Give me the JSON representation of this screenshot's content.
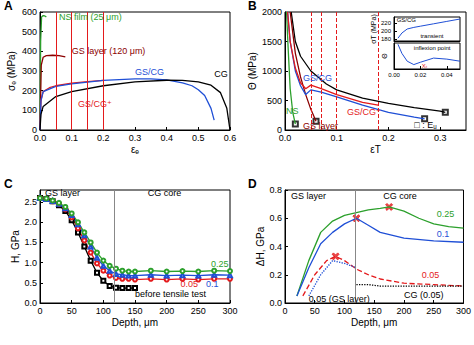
{
  "chart_data": [
    {
      "type": "line",
      "title": "A",
      "x_label": "εₑ",
      "y_label": "σₑ (MPa)",
      "xlim": [
        0,
        0.6
      ],
      "xticks": [
        {
          "value": 0,
          "label": "0.0"
        },
        0.1,
        0.2,
        0.3,
        0.4,
        0.5,
        0.6
      ],
      "ylim": [
        0,
        600
      ],
      "yticks": [
        0,
        100,
        200,
        300,
        400,
        500,
        600
      ],
      "grid": false,
      "series": [
        {
          "color": "#2ca02c",
          "line_style": "solid",
          "x": [
            0,
            0.002,
            0.005,
            0.01,
            0.015,
            0.02
          ],
          "values": [
            0,
            450,
            575,
            582,
            580,
            575
          ]
        },
        {
          "color": "#8b0000",
          "line_style": "solid",
          "x": [
            0,
            0.004,
            0.01,
            0.02,
            0.04,
            0.06,
            0.08
          ],
          "values": [
            0,
            330,
            370,
            378,
            380,
            378,
            372
          ]
        },
        {
          "color": "#e41a1c",
          "line_style": "solid",
          "x": [
            0,
            0.003,
            0.01,
            0.03,
            0.05,
            0.1,
            0.15,
            0.2
          ],
          "values": [
            0,
            150,
            195,
            215,
            225,
            238,
            246,
            252
          ]
        },
        {
          "color": "#1f4fd6",
          "line_style": "solid",
          "x": [
            0,
            0.003,
            0.01,
            0.05,
            0.1,
            0.2,
            0.3,
            0.35,
            0.4,
            0.45,
            0.48,
            0.5,
            0.52,
            0.54,
            0.55
          ],
          "values": [
            0,
            150,
            195,
            222,
            235,
            252,
            260,
            260,
            255,
            240,
            225,
            205,
            175,
            110,
            50
          ]
        },
        {
          "color": "#000000",
          "line_style": "solid",
          "x": [
            0,
            0.003,
            0.01,
            0.05,
            0.1,
            0.2,
            0.3,
            0.4,
            0.45,
            0.5,
            0.54,
            0.57,
            0.59,
            0.6
          ],
          "values": [
            0,
            80,
            120,
            170,
            195,
            225,
            245,
            253,
            252,
            245,
            228,
            190,
            110,
            0
          ]
        }
      ],
      "vlines": {
        "x": [
          0.05,
          0.1,
          0.15,
          0.2
        ],
        "color": "#e41a1c",
        "line_style": "solid"
      },
      "annotations": [
        {
          "text": "NS film (25 μm)",
          "x": 0.06,
          "y": 575,
          "color": "#2ca02c"
        },
        {
          "text": "GS layer (120 μm)",
          "x": 0.1,
          "y": 400,
          "color": "#8b0000"
        },
        {
          "text": "GS/CG",
          "x": 0.3,
          "y": 295,
          "color": "#1f4fd6"
        },
        {
          "text": "CG",
          "x": 0.55,
          "y": 285,
          "color": "#000000"
        },
        {
          "text": "GS/CG⁺",
          "x": 0.12,
          "y": 130,
          "color": "#e41a1c"
        }
      ]
    },
    {
      "type": "line",
      "title": "B",
      "x_label": "εT",
      "y_label": "Θ (MPa)",
      "xlim": [
        0,
        0.35
      ],
      "xticks": [
        {
          "value": 0,
          "label": "0.0"
        },
        0.1,
        0.2,
        0.3
      ],
      "ylim": [
        0,
        2000
      ],
      "yticks": [
        0,
        500,
        1000,
        1500,
        2000
      ],
      "grid": false,
      "series": [
        {
          "color": "#000000",
          "line_style": "solid",
          "x": [
            0.012,
            0.02,
            0.03,
            0.05,
            0.08,
            0.1,
            0.15,
            0.2,
            0.25,
            0.3,
            0.31
          ],
          "values": [
            2000,
            1500,
            1250,
            1000,
            780,
            680,
            540,
            450,
            380,
            320,
            300
          ]
        },
        {
          "color": "#2ca02c",
          "line_style": "solid",
          "x": [
            0.003,
            0.006,
            0.01,
            0.015,
            0.02
          ],
          "values": [
            2000,
            1400,
            700,
            300,
            100
          ]
        },
        {
          "color": "#8b0000",
          "line_style": "solid",
          "x": [
            0.01,
            0.02,
            0.03,
            0.04,
            0.05,
            0.06
          ],
          "values": [
            2000,
            1300,
            900,
            600,
            350,
            150
          ]
        },
        {
          "color": "#1f4fd6",
          "line_style": "solid",
          "x": [
            0.005,
            0.01,
            0.02,
            0.03,
            0.04,
            0.05,
            0.07,
            0.1,
            0.15,
            0.2,
            0.25,
            0.27
          ],
          "values": [
            2000,
            1500,
            1000,
            750,
            600,
            680,
            640,
            560,
            420,
            300,
            220,
            190
          ]
        },
        {
          "color": "#e41a1c",
          "line_style": "solid",
          "x": [
            0.005,
            0.01,
            0.02,
            0.03,
            0.04,
            0.05,
            0.07,
            0.1,
            0.15,
            0.18
          ],
          "values": [
            2000,
            1500,
            1050,
            800,
            700,
            760,
            700,
            600,
            470,
            420
          ]
        },
        {
          "type": "scatter",
          "color": "#000000",
          "marker": "square",
          "x": [
            0.02,
            0.06,
            0.27,
            0.31
          ],
          "values": [
            100,
            150,
            190,
            300
          ]
        }
      ],
      "vlines": {
        "x": [
          0.05,
          0.07,
          0.1,
          0.18
        ],
        "color": "#e41a1c",
        "line_style": "dashed"
      },
      "annotations": [
        {
          "text": "NS",
          "x": 0.002,
          "y": 330,
          "color": "#2ca02c"
        },
        {
          "text": "GS layer",
          "x": 0.035,
          "y": 70,
          "color": "#8b0000"
        },
        {
          "text": "GS/CG",
          "x": 0.035,
          "y": 880,
          "color": "#1f4fd6"
        },
        {
          "text": "GS/CG⁺",
          "x": 0.12,
          "y": 300,
          "color": "#e41a1c"
        },
        {
          "text": "□ : Eᵤ",
          "x": 0.25,
          "y": 80,
          "color": "#000000"
        }
      ]
    },
    {
      "type": "line",
      "title": "C",
      "x_label": "Depth, μm",
      "y_label": "H, GPa",
      "xlim": [
        0,
        300
      ],
      "xticks": [
        0,
        50,
        100,
        150,
        200,
        250,
        300
      ],
      "ylim": [
        0,
        2.8
      ],
      "yticks": [
        {
          "value": 0,
          "label": "0.0"
        },
        0.5,
        {
          "value": 1,
          "label": "1.0"
        },
        1.5,
        {
          "value": 2,
          "label": "2.0"
        },
        2.5
      ],
      "grid": false,
      "series": [
        {
          "color": "#000000",
          "marker": "square",
          "line_style": "solid",
          "x": [
            0,
            10,
            20,
            30,
            40,
            50,
            60,
            70,
            80,
            90,
            100,
            110,
            120,
            130,
            140,
            150
          ],
          "values": [
            2.6,
            2.58,
            2.52,
            2.42,
            2.28,
            2.05,
            1.75,
            1.4,
            1.05,
            0.75,
            0.55,
            0.42,
            0.38,
            0.37,
            0.37,
            0.37
          ]
        },
        {
          "color": "#e41a1c",
          "marker": "circle",
          "line_style": "solid",
          "x": [
            0,
            10,
            20,
            30,
            40,
            50,
            60,
            70,
            80,
            90,
            100,
            110,
            120,
            130,
            140,
            150,
            175,
            200,
            225,
            250,
            275,
            300
          ],
          "values": [
            2.6,
            2.58,
            2.52,
            2.45,
            2.32,
            2.12,
            1.85,
            1.55,
            1.25,
            0.98,
            0.8,
            0.68,
            0.62,
            0.6,
            0.6,
            0.58,
            0.6,
            0.58,
            0.6,
            0.58,
            0.6,
            0.6
          ]
        },
        {
          "color": "#1f4fd6",
          "marker": "triangle",
          "line_style": "solid",
          "x": [
            0,
            10,
            20,
            30,
            40,
            50,
            60,
            70,
            80,
            90,
            100,
            110,
            120,
            130,
            140,
            150,
            175,
            200,
            225,
            250,
            275,
            300
          ],
          "values": [
            2.6,
            2.58,
            2.53,
            2.46,
            2.35,
            2.18,
            1.95,
            1.68,
            1.4,
            1.12,
            0.92,
            0.8,
            0.72,
            0.7,
            0.68,
            0.68,
            0.7,
            0.68,
            0.69,
            0.68,
            0.7,
            0.69
          ]
        },
        {
          "color": "#2ca02c",
          "marker": "circle",
          "line_style": "solid",
          "x": [
            0,
            10,
            20,
            30,
            40,
            50,
            60,
            70,
            80,
            90,
            100,
            110,
            120,
            130,
            140,
            150,
            175,
            200,
            225,
            250,
            275,
            300
          ],
          "values": [
            2.6,
            2.59,
            2.54,
            2.48,
            2.38,
            2.22,
            2.0,
            1.75,
            1.5,
            1.25,
            1.05,
            0.92,
            0.85,
            0.8,
            0.78,
            0.78,
            0.8,
            0.78,
            0.79,
            0.78,
            0.8,
            0.79
          ]
        }
      ],
      "vlines": {
        "x": [
          118
        ],
        "color": "#888888",
        "line_style": "solid"
      },
      "annotations": [
        {
          "text": "GS layer",
          "x": 8,
          "y": 2.72,
          "color": "#000000"
        },
        {
          "text": "CG core",
          "x": 170,
          "y": 2.72,
          "color": "#000000"
        },
        {
          "text": "0.25",
          "x": 270,
          "y": 0.97,
          "color": "#2ca02c"
        },
        {
          "text": "0.1",
          "x": 262,
          "y": 0.47,
          "color": "#1f4fd6"
        },
        {
          "text": "0.05",
          "x": 222,
          "y": 0.47,
          "color": "#e41a1c"
        },
        {
          "text": "before tensile test",
          "x": 150,
          "y": 0.22,
          "color": "#000000"
        }
      ]
    },
    {
      "type": "line",
      "title": "D",
      "x_label": "Depth, μm",
      "y_label": "ΔH, GPa",
      "xlim": [
        0,
        300
      ],
      "xticks": [
        0,
        50,
        100,
        150,
        200,
        250,
        300
      ],
      "ylim": [
        0,
        0.8
      ],
      "yticks": [
        {
          "value": 0,
          "label": "0.0"
        },
        0.2,
        0.4,
        0.6,
        0.8
      ],
      "grid": false,
      "series": [
        {
          "color": "#2ca02c",
          "line_style": "solid",
          "x": [
            20,
            40,
            60,
            80,
            100,
            120,
            140,
            160,
            175,
            200,
            225,
            250,
            275,
            300
          ],
          "values": [
            0.05,
            0.3,
            0.5,
            0.58,
            0.62,
            0.64,
            0.66,
            0.67,
            0.68,
            0.65,
            0.6,
            0.56,
            0.54,
            0.53
          ]
        },
        {
          "color": "#1f4fd6",
          "line_style": "solid",
          "x": [
            20,
            40,
            60,
            80,
            100,
            120,
            140,
            160,
            200,
            250,
            300
          ],
          "values": [
            0.05,
            0.25,
            0.42,
            0.5,
            0.56,
            0.6,
            0.55,
            0.5,
            0.46,
            0.44,
            0.43
          ]
        },
        {
          "color": "#e41a1c",
          "line_style": "dashed",
          "x": [
            30,
            50,
            70,
            85,
            100,
            120,
            140,
            160,
            200,
            250,
            300
          ],
          "values": [
            0.05,
            0.2,
            0.3,
            0.33,
            0.3,
            0.24,
            0.2,
            0.17,
            0.14,
            0.13,
            0.12
          ]
        },
        {
          "color": "#000000",
          "line_style": "dotted",
          "x": [
            120,
            140,
            160,
            200,
            250,
            300
          ],
          "values": [
            0.13,
            0.13,
            0.12,
            0.12,
            0.12,
            0.12
          ]
        },
        {
          "color": "#1f4fd6",
          "line_style": "dotted",
          "x": [
            40,
            60,
            80,
            100,
            120
          ],
          "values": [
            0.05,
            0.2,
            0.3,
            0.28,
            0.25
          ]
        },
        {
          "type": "scatter",
          "color": "#e41a1c",
          "marker": "cross",
          "x": [
            175,
            120,
            85
          ],
          "values": [
            0.68,
            0.6,
            0.33
          ]
        }
      ],
      "vlines": {
        "x": [
          118
        ],
        "color": "#888888",
        "line_style": "solid"
      },
      "annotations": [
        {
          "text": "GS layer",
          "x": 10,
          "y": 0.76,
          "color": "#000000"
        },
        {
          "text": "CG core",
          "x": 165,
          "y": 0.76,
          "color": "#000000"
        },
        {
          "text": "0.25",
          "x": 255,
          "y": 0.63,
          "color": "#2ca02c"
        },
        {
          "text": "0.1",
          "x": 255,
          "y": 0.49,
          "color": "#1f4fd6"
        },
        {
          "text": "0.05",
          "x": 230,
          "y": 0.2,
          "color": "#e41a1c"
        },
        {
          "text": "CG (0.05)",
          "x": 200,
          "y": 0.06,
          "color": "#000000"
        },
        {
          "text": "0.05 (GS layer)",
          "x": 40,
          "y": 0.025,
          "color": "#000000"
        }
      ]
    },
    {
      "type": "line",
      "y_label": "σT (MPa)",
      "tick_labels": "y",
      "xlim": [
        0,
        0.05
      ],
      "xticks": [],
      "ylim": [
        175,
        235
      ],
      "yticks": [
        180,
        200,
        220
      ],
      "grid": false,
      "series": [
        {
          "color": "#1f4fd6",
          "line_style": "solid",
          "x": [
            0.003,
            0.006,
            0.01,
            0.015,
            0.02,
            0.03,
            0.04,
            0.05
          ],
          "values": [
            182,
            195,
            205,
            209,
            212,
            218,
            224,
            230
          ]
        }
      ],
      "annotations": [
        {
          "text": "GS/CG",
          "x": 0.002,
          "y": 227,
          "color": "#000000"
        },
        {
          "text": "transient",
          "x": 0.02,
          "y": 188,
          "color": "#000000"
        }
      ]
    },
    {
      "type": "line",
      "y_label": "Θ",
      "tick_labels": "x",
      "xlim": [
        0,
        0.05
      ],
      "xticks": [
        {
          "value": 0,
          "label": "0.00"
        },
        {
          "value": 0.02,
          "label": "0.02"
        },
        {
          "value": 0.04,
          "label": "0.04"
        }
      ],
      "ylim": [
        0,
        1000
      ],
      "yticks": [],
      "grid": false,
      "series": [
        {
          "color": "#1f4fd6",
          "line_style": "solid",
          "x": [
            0.003,
            0.006,
            0.01,
            0.015,
            0.02,
            0.03,
            0.04,
            0.05
          ],
          "values": [
            950,
            600,
            300,
            170,
            260,
            420,
            380,
            300
          ]
        }
      ],
      "annotations": [
        {
          "text": "Xₜ",
          "x": 0.021,
          "y": 110,
          "color": "#e41a1c"
        },
        {
          "text": "inflexion point",
          "x": 0.015,
          "y": 820,
          "color": "#000000"
        }
      ]
    }
  ]
}
